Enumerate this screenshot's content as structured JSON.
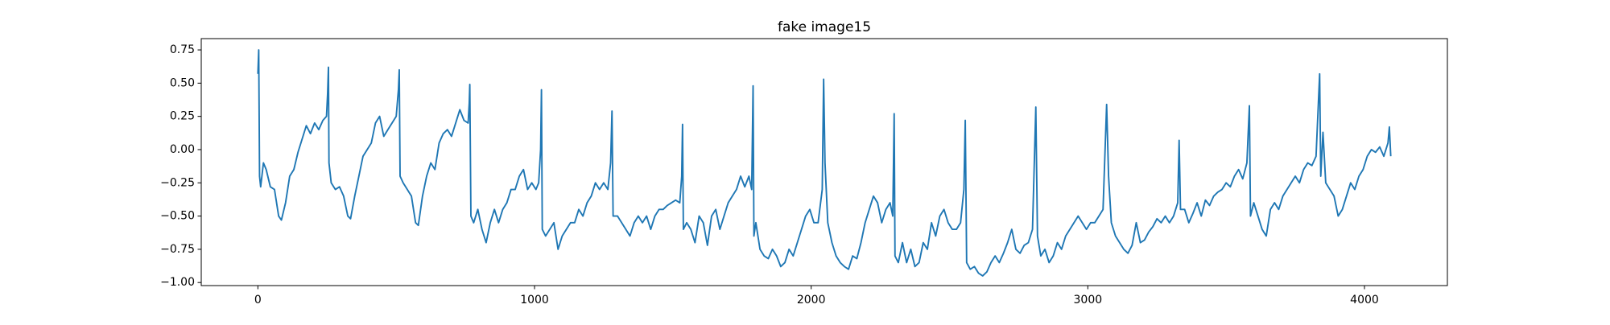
{
  "chart_data": {
    "type": "line",
    "title": "fake image15",
    "color": "#1f77b4",
    "x": [
      0,
      3,
      6,
      10,
      20,
      30,
      45,
      60,
      75,
      85,
      100,
      115,
      130,
      145,
      160,
      175,
      190,
      205,
      220,
      235,
      248,
      252,
      255,
      257,
      265,
      280,
      295,
      310,
      325,
      335,
      350,
      365,
      380,
      395,
      410,
      425,
      440,
      455,
      470,
      485,
      500,
      508,
      511,
      514,
      525,
      540,
      555,
      570,
      580,
      595,
      610,
      625,
      640,
      655,
      670,
      685,
      700,
      715,
      730,
      745,
      760,
      764,
      766,
      770,
      780,
      795,
      810,
      825,
      840,
      855,
      870,
      885,
      900,
      915,
      930,
      945,
      960,
      975,
      990,
      1005,
      1015,
      1022,
      1025,
      1028,
      1040,
      1055,
      1070,
      1085,
      1100,
      1115,
      1130,
      1145,
      1160,
      1175,
      1190,
      1205,
      1220,
      1235,
      1250,
      1265,
      1275,
      1280,
      1284,
      1300,
      1315,
      1330,
      1345,
      1360,
      1375,
      1390,
      1405,
      1420,
      1435,
      1450,
      1465,
      1480,
      1495,
      1510,
      1525,
      1532,
      1535,
      1538,
      1550,
      1565,
      1580,
      1595,
      1610,
      1625,
      1640,
      1655,
      1670,
      1685,
      1700,
      1715,
      1730,
      1745,
      1760,
      1775,
      1785,
      1790,
      1793,
      1800,
      1815,
      1830,
      1845,
      1860,
      1875,
      1890,
      1905,
      1920,
      1935,
      1950,
      1965,
      1980,
      1995,
      2010,
      2025,
      2040,
      2045,
      2050,
      2060,
      2075,
      2090,
      2105,
      2120,
      2135,
      2150,
      2165,
      2180,
      2195,
      2210,
      2225,
      2240,
      2255,
      2270,
      2285,
      2295,
      2300,
      2303,
      2315,
      2330,
      2345,
      2360,
      2375,
      2390,
      2405,
      2420,
      2435,
      2450,
      2465,
      2480,
      2495,
      2510,
      2525,
      2540,
      2552,
      2557,
      2562,
      2575,
      2590,
      2605,
      2620,
      2635,
      2650,
      2665,
      2680,
      2695,
      2710,
      2725,
      2740,
      2755,
      2770,
      2785,
      2800,
      2812,
      2818,
      2830,
      2845,
      2860,
      2875,
      2890,
      2905,
      2920,
      2935,
      2950,
      2965,
      2980,
      2995,
      3010,
      3025,
      3040,
      3055,
      3068,
      3075,
      3085,
      3100,
      3115,
      3130,
      3145,
      3160,
      3175,
      3190,
      3205,
      3220,
      3235,
      3250,
      3265,
      3280,
      3295,
      3310,
      3325,
      3330,
      3335,
      3350,
      3365,
      3380,
      3395,
      3410,
      3425,
      3440,
      3455,
      3470,
      3485,
      3500,
      3515,
      3530,
      3545,
      3560,
      3575,
      3584,
      3588,
      3600,
      3615,
      3630,
      3645,
      3660,
      3675,
      3690,
      3705,
      3720,
      3735,
      3750,
      3765,
      3780,
      3795,
      3810,
      3825,
      3838,
      3842,
      3850,
      3860,
      3875,
      3890,
      3905,
      3920,
      3935,
      3950,
      3965,
      3980,
      3995,
      4010,
      4025,
      4040,
      4055,
      4070,
      4085,
      4090,
      4095
    ],
    "values": [
      0.57,
      0.75,
      -0.2,
      -0.28,
      -0.1,
      -0.15,
      -0.28,
      -0.3,
      -0.5,
      -0.53,
      -0.4,
      -0.2,
      -0.15,
      -0.02,
      0.08,
      0.18,
      0.12,
      0.2,
      0.15,
      0.22,
      0.25,
      0.42,
      0.62,
      -0.1,
      -0.25,
      -0.3,
      -0.28,
      -0.35,
      -0.5,
      -0.52,
      -0.35,
      -0.2,
      -0.05,
      0.0,
      0.05,
      0.2,
      0.25,
      0.1,
      0.15,
      0.2,
      0.25,
      0.45,
      0.6,
      -0.2,
      -0.25,
      -0.3,
      -0.35,
      -0.55,
      -0.57,
      -0.35,
      -0.2,
      -0.1,
      -0.15,
      0.05,
      0.12,
      0.15,
      0.1,
      0.2,
      0.3,
      0.22,
      0.2,
      0.35,
      0.49,
      -0.5,
      -0.55,
      -0.45,
      -0.6,
      -0.7,
      -0.55,
      -0.45,
      -0.55,
      -0.45,
      -0.4,
      -0.3,
      -0.3,
      -0.2,
      -0.15,
      -0.3,
      -0.25,
      -0.3,
      -0.25,
      0.0,
      0.45,
      -0.6,
      -0.65,
      -0.6,
      -0.55,
      -0.75,
      -0.65,
      -0.6,
      -0.55,
      -0.55,
      -0.45,
      -0.5,
      -0.4,
      -0.35,
      -0.25,
      -0.3,
      -0.25,
      -0.3,
      -0.1,
      0.29,
      -0.5,
      -0.5,
      -0.55,
      -0.6,
      -0.65,
      -0.55,
      -0.5,
      -0.55,
      -0.5,
      -0.6,
      -0.5,
      -0.45,
      -0.45,
      -0.42,
      -0.4,
      -0.38,
      -0.4,
      -0.2,
      0.19,
      -0.6,
      -0.55,
      -0.6,
      -0.7,
      -0.5,
      -0.55,
      -0.72,
      -0.5,
      -0.45,
      -0.6,
      -0.5,
      -0.4,
      -0.35,
      -0.3,
      -0.2,
      -0.28,
      -0.2,
      -0.3,
      0.48,
      -0.65,
      -0.55,
      -0.75,
      -0.8,
      -0.82,
      -0.75,
      -0.8,
      -0.88,
      -0.85,
      -0.75,
      -0.8,
      -0.7,
      -0.6,
      -0.5,
      -0.45,
      -0.55,
      -0.55,
      -0.3,
      0.53,
      -0.1,
      -0.55,
      -0.7,
      -0.8,
      -0.85,
      -0.88,
      -0.9,
      -0.8,
      -0.82,
      -0.7,
      -0.55,
      -0.45,
      -0.35,
      -0.4,
      -0.55,
      -0.45,
      -0.4,
      -0.5,
      0.27,
      -0.8,
      -0.85,
      -0.7,
      -0.85,
      -0.75,
      -0.88,
      -0.85,
      -0.7,
      -0.75,
      -0.55,
      -0.65,
      -0.5,
      -0.45,
      -0.55,
      -0.6,
      -0.6,
      -0.55,
      -0.3,
      0.22,
      -0.85,
      -0.9,
      -0.88,
      -0.93,
      -0.95,
      -0.92,
      -0.85,
      -0.8,
      -0.85,
      -0.78,
      -0.7,
      -0.6,
      -0.75,
      -0.78,
      -0.72,
      -0.7,
      -0.6,
      0.32,
      -0.65,
      -0.8,
      -0.75,
      -0.85,
      -0.8,
      -0.7,
      -0.75,
      -0.65,
      -0.6,
      -0.55,
      -0.5,
      -0.55,
      -0.6,
      -0.55,
      -0.55,
      -0.5,
      -0.45,
      0.34,
      -0.2,
      -0.55,
      -0.65,
      -0.7,
      -0.75,
      -0.78,
      -0.72,
      -0.55,
      -0.7,
      -0.68,
      -0.62,
      -0.58,
      -0.52,
      -0.55,
      -0.5,
      -0.55,
      -0.5,
      -0.4,
      0.07,
      -0.45,
      -0.45,
      -0.55,
      -0.48,
      -0.4,
      -0.5,
      -0.38,
      -0.42,
      -0.35,
      -0.32,
      -0.3,
      -0.25,
      -0.28,
      -0.2,
      -0.15,
      -0.22,
      -0.1,
      0.33,
      -0.5,
      -0.4,
      -0.5,
      -0.6,
      -0.65,
      -0.45,
      -0.4,
      -0.45,
      -0.35,
      -0.3,
      -0.25,
      -0.2,
      -0.25,
      -0.15,
      -0.1,
      -0.12,
      -0.05,
      0.57,
      -0.2,
      0.13,
      -0.25,
      -0.3,
      -0.35,
      -0.5,
      -0.45,
      -0.35,
      -0.25,
      -0.3,
      -0.2,
      -0.15,
      -0.05,
      0.0,
      -0.02,
      0.02,
      -0.05,
      0.05,
      0.17,
      -0.05
    ],
    "xlim": [
      -204.75,
      4299.75
    ],
    "xticks": [
      0,
      1000,
      2000,
      3000,
      4000
    ],
    "ylim": [
      -1.023,
      0.835
    ],
    "yticks": [
      {
        "value": -1.0,
        "label": "−1.00"
      },
      {
        "value": -0.75,
        "label": "−0.75"
      },
      {
        "value": -0.5,
        "label": "−0.50"
      },
      {
        "value": -0.25,
        "label": "−0.25"
      },
      {
        "value": 0,
        "label": "0.00"
      },
      {
        "value": 0.25,
        "label": "0.25"
      },
      {
        "value": 0.5,
        "label": "0.50"
      },
      {
        "value": 0.75,
        "label": "0.75"
      }
    ],
    "grid": false
  }
}
